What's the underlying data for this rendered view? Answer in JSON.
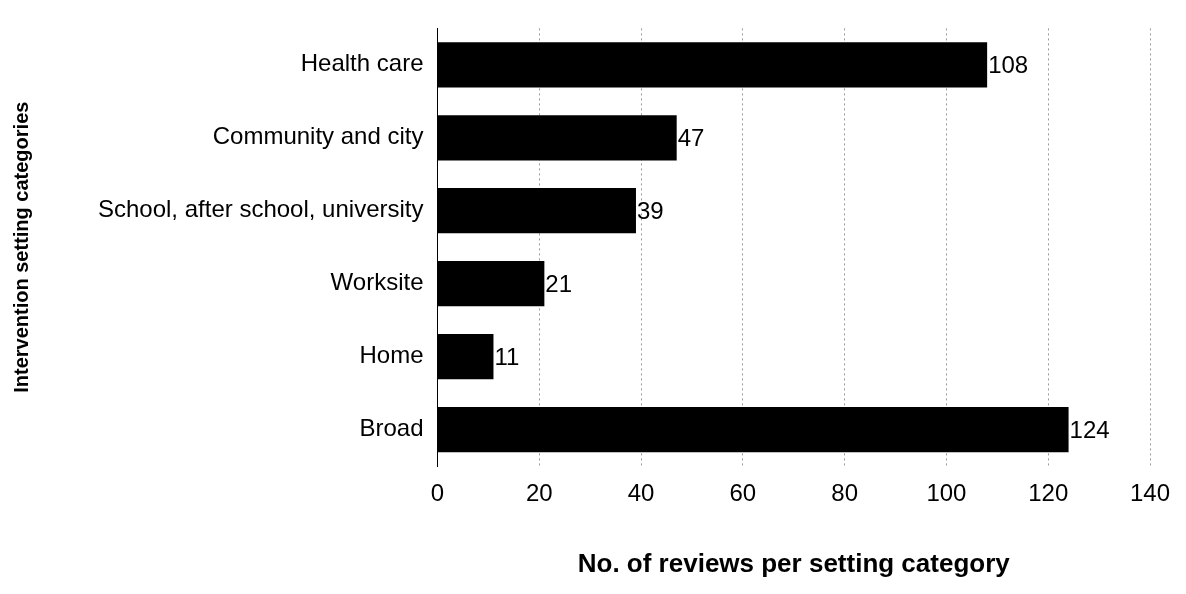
{
  "chart_data": {
    "type": "bar",
    "orientation": "horizontal",
    "xlabel": "No. of reviews per setting category",
    "ylabel": "Intervention setting categories",
    "categories": [
      "Health care",
      "Community and city",
      "School, after school, university",
      "Worksite",
      "Home",
      "Broad"
    ],
    "values": [
      108,
      47,
      39,
      21,
      11,
      124
    ],
    "color": "#000000",
    "xlim": [
      0,
      140
    ],
    "xticks": [
      0,
      20,
      40,
      60,
      80,
      100,
      120,
      140
    ],
    "grid": "x",
    "data_labels": true
  }
}
